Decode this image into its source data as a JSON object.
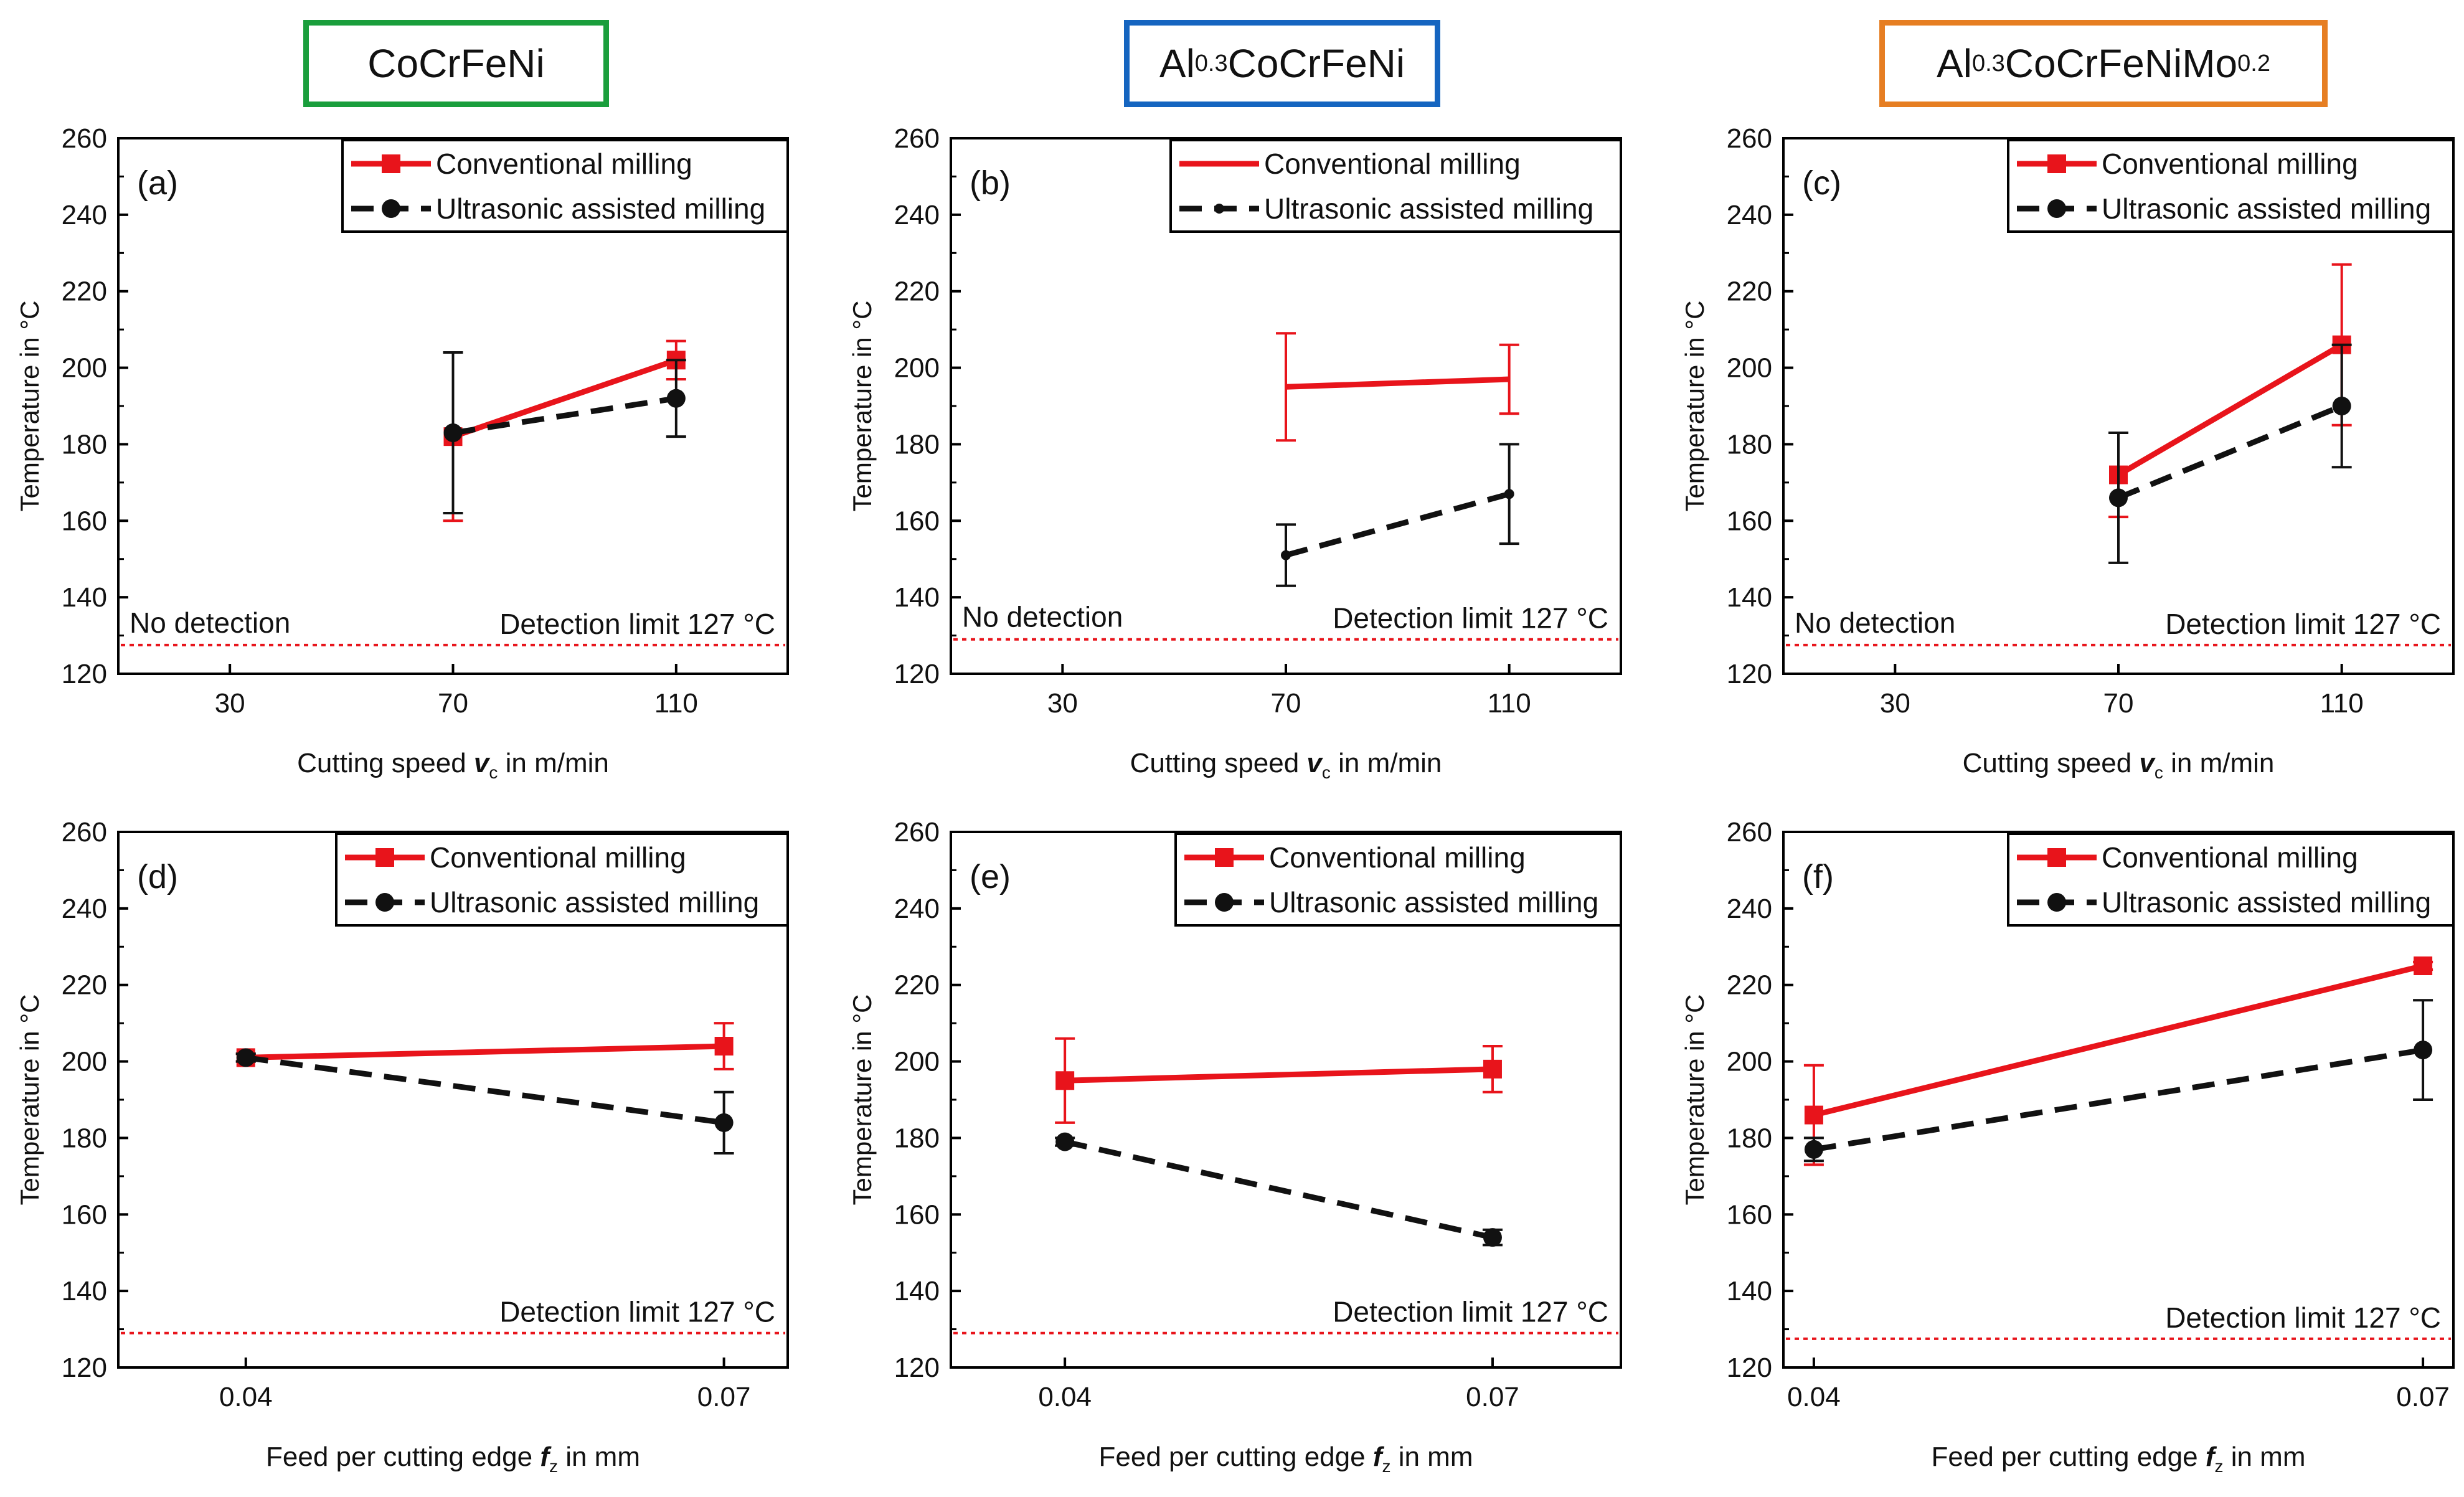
{
  "materials": [
    {
      "parts": [
        {
          "t": "CoCrFeNi",
          "sub": false
        }
      ],
      "color": "#1a9e3c"
    },
    {
      "parts": [
        {
          "t": "Al",
          "sub": false
        },
        {
          "t": "0.3",
          "sub": true
        },
        {
          "t": "CoCrFeNi",
          "sub": false
        }
      ],
      "color": "#1565c0"
    },
    {
      "parts": [
        {
          "t": "Al",
          "sub": false
        },
        {
          "t": "0.3",
          "sub": true
        },
        {
          "t": "CoCrFeNiMo",
          "sub": false
        },
        {
          "t": "0.2",
          "sub": true
        }
      ],
      "color": "#e67e22"
    }
  ],
  "colors": {
    "conventional": "#e8141b",
    "ultrasonic": "#111111",
    "limit": "#e8141b",
    "axis": "#000000"
  },
  "chart_data": [
    {
      "panel": "(a)",
      "type": "line",
      "material": "CoCrFeNi",
      "xaxis": {
        "label_pre": "Cutting speed ",
        "label_var": "v",
        "label_sub": "c",
        "label_post": " in m/min",
        "ticks": [
          30,
          70,
          110
        ],
        "lim": [
          10,
          130
        ]
      },
      "ylabel": "Temperature in °C",
      "ylim": [
        120,
        260
      ],
      "yticks": [
        120,
        140,
        160,
        180,
        200,
        220,
        240,
        260
      ],
      "series": [
        {
          "name": "Conventional milling",
          "key": "conventional",
          "dash": false,
          "marker": "square",
          "points": [
            {
              "x": 70,
              "y": 182,
              "err": 22
            },
            {
              "x": 110,
              "y": 202,
              "err": 5
            }
          ]
        },
        {
          "name": "Ultrasonic assisted milling",
          "key": "ultrasonic",
          "dash": true,
          "marker": "circle",
          "points": [
            {
              "x": 70,
              "y": 183,
              "err": 21
            },
            {
              "x": 110,
              "y": 192,
              "err": 10
            }
          ]
        }
      ],
      "limit": {
        "y": 127.5,
        "label": "Detection limit 127 °C"
      },
      "note": "No detection"
    },
    {
      "panel": "(b)",
      "type": "line",
      "material": "Al0.3CoCrFeNi",
      "xaxis": {
        "label_pre": "Cutting speed ",
        "label_var": "v",
        "label_sub": "c",
        "label_post": " in m/min",
        "ticks": [
          30,
          70,
          110
        ],
        "lim": [
          10,
          130
        ]
      },
      "ylabel": "Temperature in °C",
      "ylim": [
        120,
        260
      ],
      "yticks": [
        120,
        140,
        160,
        180,
        200,
        220,
        240,
        260
      ],
      "series": [
        {
          "name": "Conventional milling",
          "key": "conventional",
          "dash": false,
          "marker": "none",
          "points": [
            {
              "x": 70,
              "y": 195,
              "err": 14
            },
            {
              "x": 110,
              "y": 197,
              "err": 9
            }
          ]
        },
        {
          "name": "Ultrasonic assisted milling",
          "key": "ultrasonic",
          "dash": true,
          "marker": "dot",
          "points": [
            {
              "x": 70,
              "y": 151,
              "err": 8
            },
            {
              "x": 110,
              "y": 167,
              "err": 13
            }
          ]
        }
      ],
      "limit": {
        "y": 129,
        "label": "Detection limit 127 °C"
      },
      "note": "No detection"
    },
    {
      "panel": "(c)",
      "type": "line",
      "material": "Al0.3CoCrFeNiMo0.2",
      "xaxis": {
        "label_pre": "Cutting speed ",
        "label_var": "v",
        "label_sub": "c",
        "label_post": " in m/min",
        "ticks": [
          30,
          70,
          110
        ],
        "lim": [
          10,
          130
        ]
      },
      "ylabel": "Temperature in °C",
      "ylim": [
        120,
        260
      ],
      "yticks": [
        120,
        140,
        160,
        180,
        200,
        220,
        240,
        260
      ],
      "series": [
        {
          "name": "Conventional milling",
          "key": "conventional",
          "dash": false,
          "marker": "square",
          "points": [
            {
              "x": 70,
              "y": 172,
              "err": 11
            },
            {
              "x": 110,
              "y": 206,
              "err": 21
            }
          ]
        },
        {
          "name": "Ultrasonic assisted milling",
          "key": "ultrasonic",
          "dash": true,
          "marker": "circle",
          "points": [
            {
              "x": 70,
              "y": 166,
              "err": 17
            },
            {
              "x": 110,
              "y": 190,
              "err": 16
            }
          ]
        }
      ],
      "limit": {
        "y": 127.5,
        "label": "Detection limit 127 °C"
      },
      "note": "No detection"
    },
    {
      "panel": "(d)",
      "type": "line",
      "material": "CoCrFeNi",
      "xaxis": {
        "label_pre": "Feed per cutting edge ",
        "label_var": "f",
        "label_sub": "z",
        "label_post": " in mm",
        "ticks": [
          0.04,
          0.07
        ],
        "lim": [
          0.032,
          0.074
        ]
      },
      "ylabel": "Temperature in °C",
      "ylim": [
        120,
        260
      ],
      "yticks": [
        120,
        140,
        160,
        180,
        200,
        220,
        240,
        260
      ],
      "series": [
        {
          "name": "Conventional milling",
          "key": "conventional",
          "dash": false,
          "marker": "square",
          "points": [
            {
              "x": 0.04,
              "y": 201,
              "err": 1
            },
            {
              "x": 0.07,
              "y": 204,
              "err": 6
            }
          ]
        },
        {
          "name": "Ultrasonic assisted milling",
          "key": "ultrasonic",
          "dash": true,
          "marker": "circle",
          "points": [
            {
              "x": 0.04,
              "y": 201,
              "err": 1
            },
            {
              "x": 0.07,
              "y": 184,
              "err": 8
            }
          ]
        }
      ],
      "limit": {
        "y": 129,
        "label": "Detection limit 127 °C"
      },
      "note": ""
    },
    {
      "panel": "(e)",
      "type": "line",
      "material": "Al0.3CoCrFeNi",
      "xaxis": {
        "label_pre": "Feed per cutting edge ",
        "label_var": "f",
        "label_sub": "z",
        "label_post": " in mm",
        "ticks": [
          0.04,
          0.07
        ],
        "lim": [
          0.032,
          0.079
        ]
      },
      "ylabel": "Temperature in °C",
      "ylim": [
        120,
        260
      ],
      "yticks": [
        120,
        140,
        160,
        180,
        200,
        220,
        240,
        260
      ],
      "series": [
        {
          "name": "Conventional milling",
          "key": "conventional",
          "dash": false,
          "marker": "square",
          "points": [
            {
              "x": 0.04,
              "y": 195,
              "err": 11
            },
            {
              "x": 0.07,
              "y": 198,
              "err": 6
            }
          ]
        },
        {
          "name": "Ultrasonic assisted milling",
          "key": "ultrasonic",
          "dash": true,
          "marker": "circle",
          "points": [
            {
              "x": 0.04,
              "y": 179,
              "err": 1
            },
            {
              "x": 0.07,
              "y": 154,
              "err": 2
            }
          ]
        }
      ],
      "limit": {
        "y": 129,
        "label": "Detection limit 127 °C"
      },
      "note": ""
    },
    {
      "panel": "(f)",
      "type": "line",
      "material": "Al0.3CoCrFeNiMo0.2",
      "xaxis": {
        "label_pre": "Feed per cutting edge ",
        "label_var": "f",
        "label_sub": "z",
        "label_post": " in mm",
        "ticks": [
          0.04,
          0.07
        ],
        "lim": [
          0.0385,
          0.0715
        ]
      },
      "ylabel": "Temperature in °C",
      "ylim": [
        120,
        260
      ],
      "yticks": [
        120,
        140,
        160,
        180,
        200,
        220,
        240,
        260
      ],
      "series": [
        {
          "name": "Conventional milling",
          "key": "conventional",
          "dash": false,
          "marker": "square",
          "points": [
            {
              "x": 0.04,
              "y": 186,
              "err": 13
            },
            {
              "x": 0.07,
              "y": 225,
              "err": 1
            }
          ]
        },
        {
          "name": "Ultrasonic assisted milling",
          "key": "ultrasonic",
          "dash": true,
          "marker": "circle",
          "points": [
            {
              "x": 0.04,
              "y": 177,
              "err": 3
            },
            {
              "x": 0.07,
              "y": 203,
              "err": 13
            }
          ]
        }
      ],
      "limit": {
        "y": 127.5,
        "label": "Detection limit 127 °C"
      },
      "note": ""
    }
  ]
}
